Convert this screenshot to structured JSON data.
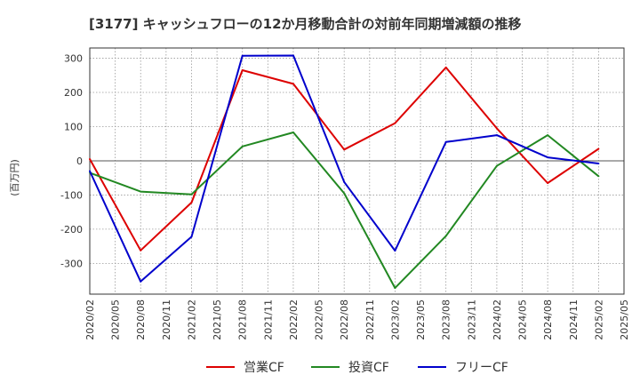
{
  "chart_data": {
    "type": "line",
    "title": "[3177]  キャッシュフローの12か月移動合計の対前年同期増減額の推移",
    "ylabel": "(百万円)",
    "xlabel": "",
    "ylim": [
      -390,
      330
    ],
    "yticks": [
      300,
      200,
      100,
      0,
      -100,
      -200,
      -300
    ],
    "categories": [
      "2020/02",
      "2020/05",
      "2020/08",
      "2020/11",
      "2021/02",
      "2021/05",
      "2021/08",
      "2021/11",
      "2022/02",
      "2022/05",
      "2022/08",
      "2022/11",
      "2023/02",
      "2023/05",
      "2023/08",
      "2023/11",
      "2024/02",
      "2024/05",
      "2024/08",
      "2024/11",
      "2025/02",
      "2025/05"
    ],
    "grid": true,
    "legend_position": "bottom",
    "series": [
      {
        "name": "営業CF",
        "color": "#dd0000",
        "values": [
          5,
          null,
          -262,
          null,
          -122,
          null,
          265,
          null,
          225,
          null,
          33,
          null,
          110,
          null,
          273,
          null,
          95,
          null,
          -65,
          null,
          35,
          null
        ]
      },
      {
        "name": "投資CF",
        "color": "#228822",
        "values": [
          -35,
          null,
          -90,
          null,
          -98,
          null,
          42,
          null,
          83,
          null,
          -95,
          null,
          -372,
          null,
          -220,
          null,
          -15,
          null,
          75,
          null,
          -45,
          null
        ]
      },
      {
        "name": "フリーCF",
        "color": "#0000cc",
        "values": [
          -30,
          null,
          -353,
          null,
          -222,
          null,
          307,
          null,
          308,
          null,
          -62,
          null,
          -263,
          null,
          55,
          null,
          75,
          null,
          10,
          null,
          -8,
          null
        ]
      }
    ]
  }
}
